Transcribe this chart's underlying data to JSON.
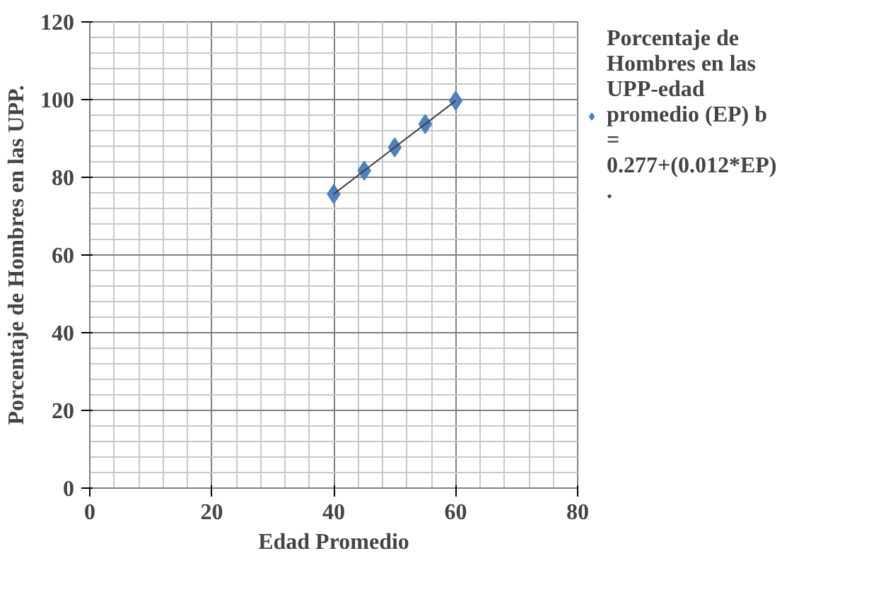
{
  "chart_data": {
    "type": "scatter",
    "xlabel": "Edad Promedio",
    "ylabel": "Porcentaje de Hombres en las UPP.",
    "xlim": [
      0,
      80
    ],
    "xticks": [
      0,
      20,
      40,
      60,
      80
    ],
    "ylim": [
      0,
      120
    ],
    "yticks": [
      0,
      20,
      40,
      60,
      80,
      100,
      120
    ],
    "grid": true,
    "legend": "right",
    "series": [
      {
        "name": "Porcentaje de Hombres en las UPP-edad promedio (EP) b = 0.277+(0.012*EP) .",
        "color": "#4f81bd",
        "marker": "diamond",
        "x": [
          40,
          45,
          50,
          55,
          60
        ],
        "values": [
          75.7,
          81.7,
          87.7,
          93.7,
          99.7
        ]
      },
      {
        "type": "line",
        "marker": "none",
        "color": "#404040",
        "x": [
          40,
          60
        ],
        "values": [
          75.7,
          99.7
        ]
      }
    ]
  }
}
